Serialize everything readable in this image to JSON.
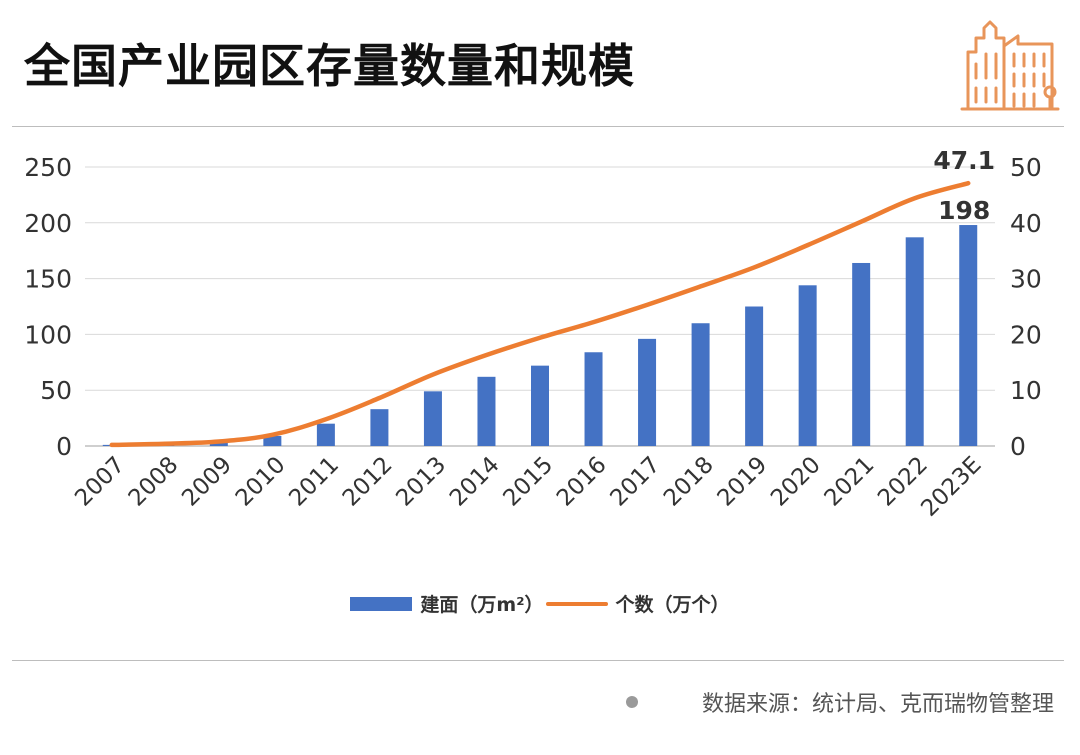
{
  "title": "全国产业园区存量数量和规模",
  "source_note": "数据来源：统计局、克而瑞物管整理",
  "icon": "city-buildings-icon",
  "colors": {
    "bar": "#4472c4",
    "line": "#ed7d31",
    "accent": "#e8955a",
    "grid": "#d9d9d9"
  },
  "chart_data": {
    "type": "bar",
    "categories": [
      "2007",
      "2008",
      "2009",
      "2010",
      "2011",
      "2012",
      "2013",
      "2014",
      "2015",
      "2016",
      "2017",
      "2018",
      "2019",
      "2020",
      "2021",
      "2022",
      "2023E"
    ],
    "series": [
      {
        "name": "建面（万m²）",
        "type": "bar",
        "axis": "left",
        "values": [
          1,
          2,
          4,
          9,
          20,
          33,
          49,
          62,
          72,
          84,
          96,
          110,
          125,
          144,
          164,
          187,
          198
        ]
      },
      {
        "name": "个数（万个）",
        "type": "line",
        "axis": "right",
        "values": [
          0.2,
          0.4,
          0.8,
          2.0,
          4.8,
          8.6,
          12.8,
          16.3,
          19.4,
          22.2,
          25.3,
          28.6,
          32.0,
          36.0,
          40.2,
          44.4,
          47.1
        ]
      }
    ],
    "y_left": {
      "ylim": [
        0,
        250
      ],
      "ticks": [
        0,
        50,
        100,
        150,
        200,
        250
      ]
    },
    "y_right": {
      "ylim": [
        0,
        50
      ],
      "ticks": [
        0,
        10,
        20,
        30,
        40,
        50
      ]
    },
    "data_labels": [
      {
        "series": 0,
        "category": "2023E",
        "text": "198"
      },
      {
        "series": 1,
        "category": "2023E",
        "text": "47.1"
      }
    ],
    "grid": true,
    "legend": "bottom"
  }
}
